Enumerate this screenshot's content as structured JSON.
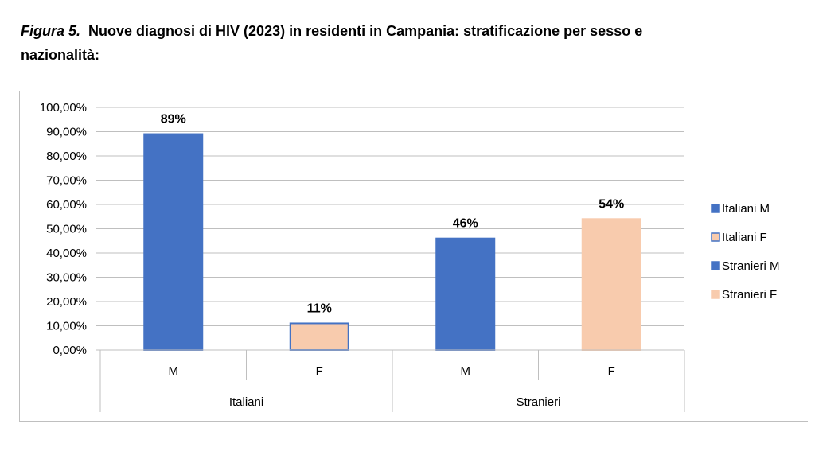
{
  "caption": {
    "figure_label": "Figura 5.",
    "title": "Nuove diagnosi di HIV (2023) in residenti in Campania: stratificazione per sesso e nazionalità:"
  },
  "chart_data": {
    "type": "bar",
    "groups": [
      "Italiani",
      "Stranieri"
    ],
    "categories": [
      "M",
      "F",
      "M",
      "F"
    ],
    "category_group": [
      "Italiani",
      "Italiani",
      "Stranieri",
      "Stranieri"
    ],
    "values": [
      0.89,
      0.11,
      0.46,
      0.54
    ],
    "data_labels": [
      "89%",
      "11%",
      "46%",
      "54%"
    ],
    "bar_colors": [
      "#4472c4",
      "#f8cbad",
      "#4472c4",
      "#f8cbad"
    ],
    "bar_borders": [
      "#4472c4",
      "#4472c4",
      "#4472c4",
      "#f8cbad"
    ],
    "ylim": [
      0,
      1
    ],
    "yticks": [
      "0,00%",
      "10,00%",
      "20,00%",
      "30,00%",
      "40,00%",
      "50,00%",
      "60,00%",
      "70,00%",
      "80,00%",
      "90,00%",
      "100,00%"
    ],
    "grid": true,
    "legend": {
      "placement": "right",
      "entries": [
        {
          "name": "Italiani M",
          "color": "#4472c4",
          "border": "#4472c4"
        },
        {
          "name": "Italiani F",
          "color": "#f8cbad",
          "border": "#4472c4"
        },
        {
          "name": "Stranieri M",
          "color": "#4472c4",
          "border": "#4472c4"
        },
        {
          "name": "Stranieri F",
          "color": "#f8cbad",
          "border": "#f8cbad"
        }
      ]
    }
  }
}
